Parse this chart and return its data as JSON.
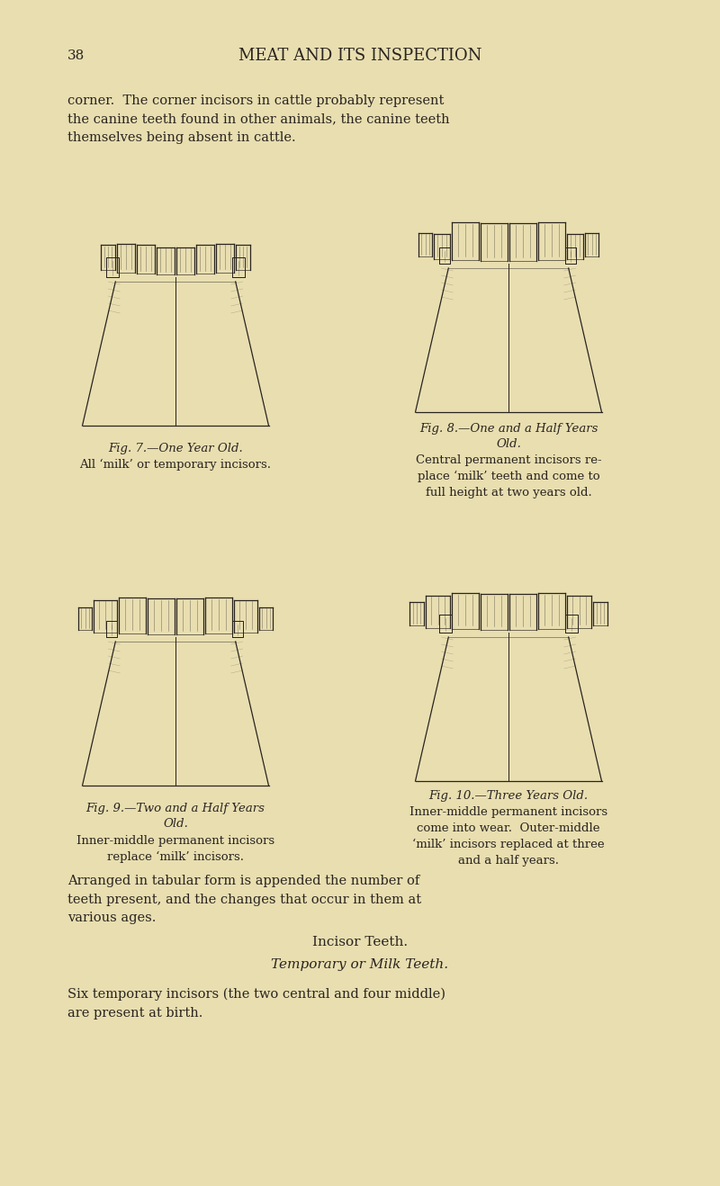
{
  "background_color": "#e8deb0",
  "page_width": 8.0,
  "page_height": 13.18,
  "dpi": 100,
  "header_number": "38",
  "header_title": "MEAT AND ITS INSPECTION",
  "para1": "corner.  The corner incisors in cattle probably represent\nthe canine teeth found in other animals, the canine teeth\nthemselves being absent in cattle.",
  "fig7_caption_title": "Fig. 7.—One Year Old.",
  "fig7_caption_body": "All ‘milk’ or temporary incisors.",
  "fig8_caption_title": "Fig. 8.—One and a Half Years\nOld.",
  "fig8_caption_body": "Central permanent incisors re-\nplace ‘milk’ teeth and come to\nfull height at two years old.",
  "fig9_caption_title": "Fig. 9.—Two and a Half Years\nOld.",
  "fig9_caption_body": "Inner-middle permanent incisors\nreplace ‘milk’ incisors.",
  "fig10_caption_title": "Fig. 10.—Three Years Old.",
  "fig10_caption_body": "Inner‐middle permanent incisors\ncome into wear.  Outer‐middle\n‘milk’ incisors replaced at three\nand a half years.",
  "para2": "Arranged in tabular form is appended the number of\nteeth present, and the changes that occur in them at\nvarious ages.",
  "section_title": "Incisor Teeth.",
  "subsection_title": "Temporary or Milk Teeth.",
  "para3": "Six temporary incisors (the two central and four middle)\nare present at birth.",
  "text_color": "#2a2420",
  "dark_color": "#1a1208",
  "fig_color": "#2a2420"
}
